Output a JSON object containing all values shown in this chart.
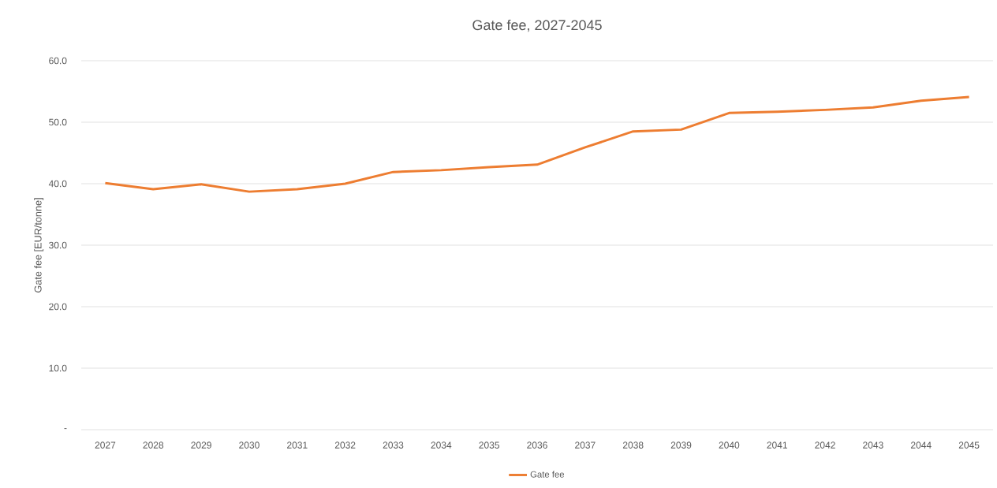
{
  "chart_data": {
    "type": "line",
    "title": "Gate fee, 2027-2045",
    "ylabel": "Gate fee [EUR/tonne]",
    "categories": [
      "2027",
      "2028",
      "2029",
      "2030",
      "2031",
      "2032",
      "2033",
      "2034",
      "2035",
      "2036",
      "2037",
      "2038",
      "2039",
      "2040",
      "2041",
      "2042",
      "2043",
      "2044",
      "2045"
    ],
    "series": [
      {
        "name": "Gate fee",
        "color": "#ed7d31",
        "values": [
          40.1,
          39.1,
          39.9,
          38.7,
          39.1,
          40.0,
          41.9,
          42.2,
          42.7,
          43.1,
          45.9,
          48.5,
          48.8,
          51.5,
          51.7,
          52.0,
          52.4,
          53.5,
          54.1
        ]
      }
    ],
    "ylim": [
      0,
      60
    ],
    "yticks": [
      {
        "value": 0,
        "label": "-"
      },
      {
        "value": 10,
        "label": "10.0"
      },
      {
        "value": 20,
        "label": "20.0"
      },
      {
        "value": 30,
        "label": "30.0"
      },
      {
        "value": 40,
        "label": "40.0"
      },
      {
        "value": 50,
        "label": "50.0"
      },
      {
        "value": 60,
        "label": "60.0"
      }
    ],
    "grid": "y",
    "legend": "bottom",
    "marker": "none",
    "line_style": "solid"
  }
}
